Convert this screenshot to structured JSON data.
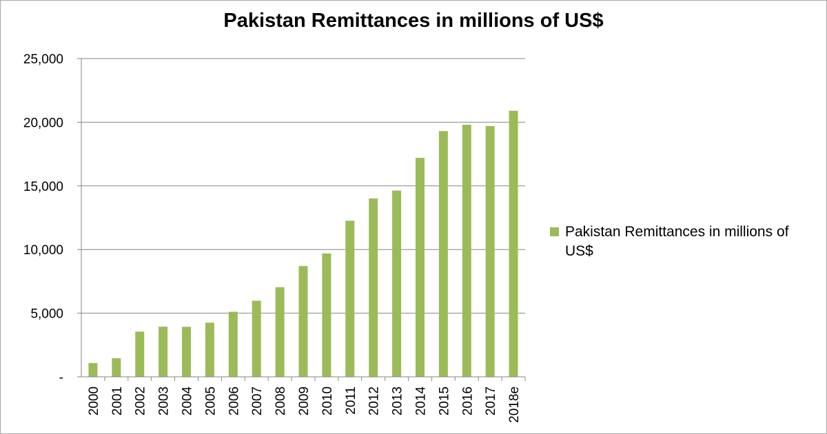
{
  "chart_data": {
    "type": "bar",
    "title": "Pakistan Remittances in millions of US$",
    "categories": [
      "2000",
      "2001",
      "2002",
      "2003",
      "2004",
      "2005",
      "2006",
      "2007",
      "2008",
      "2009",
      "2010",
      "2011",
      "2012",
      "2013",
      "2014",
      "2015",
      "2016",
      "2017",
      "2018e"
    ],
    "series": [
      {
        "name": "Pakistan Remittances in millions of US$",
        "color": "#9bbb59",
        "values": [
          1080,
          1460,
          3550,
          3940,
          3930,
          4250,
          5110,
          5980,
          7040,
          8700,
          9690,
          12260,
          14010,
          14630,
          17200,
          19300,
          19800,
          19700,
          20900
        ]
      }
    ],
    "ylim": [
      0,
      25000
    ],
    "yticks": [
      0,
      5000,
      10000,
      15000,
      20000,
      25000
    ],
    "ytick_labels": [
      "-",
      "5,000",
      "10,000",
      "15,000",
      "20,000",
      "25,000"
    ],
    "grid": true,
    "legend": "right"
  }
}
